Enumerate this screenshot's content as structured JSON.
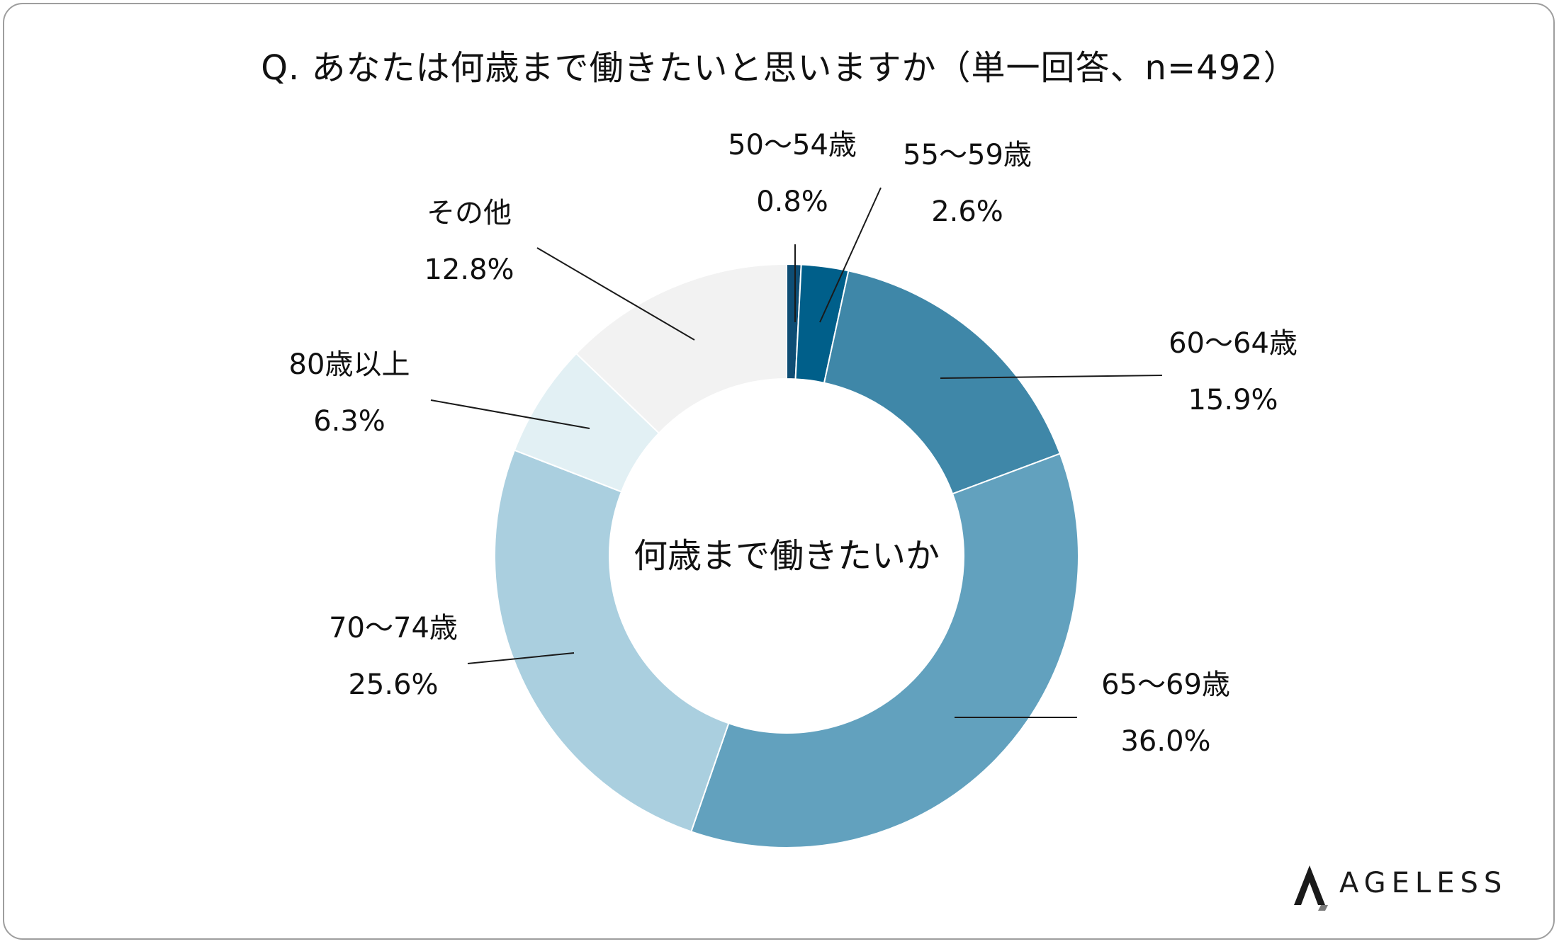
{
  "chart_data": {
    "type": "pie",
    "variant": "donut",
    "title": "Q. あなたは何歳まで働きたいと思いますか（単一回答、n=492）",
    "center_label": "何歳まで働きたいか",
    "categories": [
      "50〜54歳",
      "55〜59歳",
      "60〜64歳",
      "65〜69歳",
      "70〜74歳",
      "80歳以上",
      "その他"
    ],
    "values": [
      0.8,
      2.6,
      15.9,
      36.0,
      25.6,
      6.3,
      12.8
    ],
    "value_labels": [
      "0.8%",
      "2.6%",
      "15.9%",
      "36.0%",
      "25.6%",
      "6.3%",
      "12.8%"
    ],
    "colors": [
      "#0e4d74",
      "#005f8a",
      "#3f87a8",
      "#62a1be",
      "#aacfdf",
      "#e2f0f4",
      "#f2f2f2"
    ],
    "start_angle": "12 o'clock",
    "direction": "clockwise"
  },
  "brand": {
    "name": "AGELESS"
  }
}
